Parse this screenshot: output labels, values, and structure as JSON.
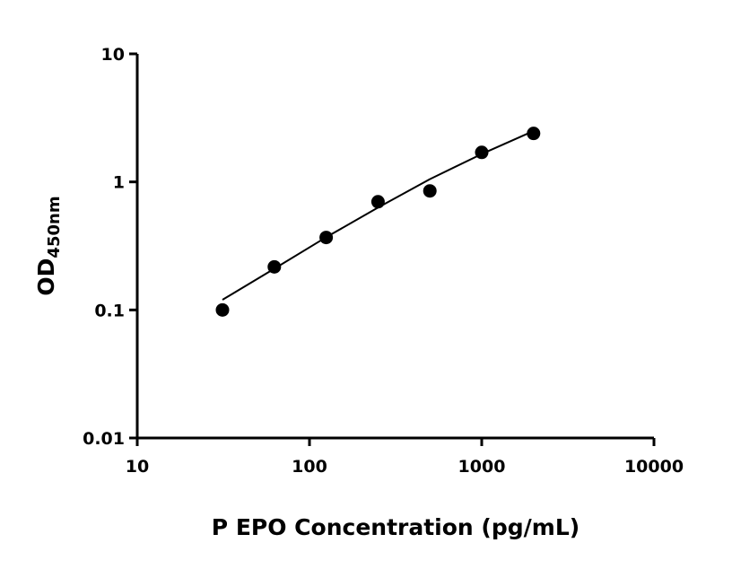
{
  "chart_data": {
    "type": "scatter",
    "title": "",
    "xlabel": "P EPO Concentration (pg/mL)",
    "ylabel_main": "OD",
    "ylabel_sub": "450nm",
    "x_scale": "log",
    "y_scale": "log",
    "xlim": [
      10,
      10000
    ],
    "ylim": [
      0.01,
      10
    ],
    "x_ticks": [
      "10",
      "100",
      "1000",
      "10000"
    ],
    "y_ticks": [
      "0.01",
      "0.1",
      "1",
      "10"
    ],
    "grid": false,
    "legend": "none",
    "points": {
      "x": [
        31.25,
        62.5,
        125,
        250,
        500,
        1000,
        2000
      ],
      "y": [
        0.1,
        0.217,
        0.368,
        0.7,
        0.85,
        1.7,
        2.39
      ]
    },
    "fit_curve": {
      "x": [
        31.25,
        62.5,
        125,
        250,
        500,
        1000,
        2000
      ],
      "y": [
        0.12,
        0.21,
        0.37,
        0.63,
        1.05,
        1.65,
        2.5
      ]
    },
    "color": "#000000"
  }
}
